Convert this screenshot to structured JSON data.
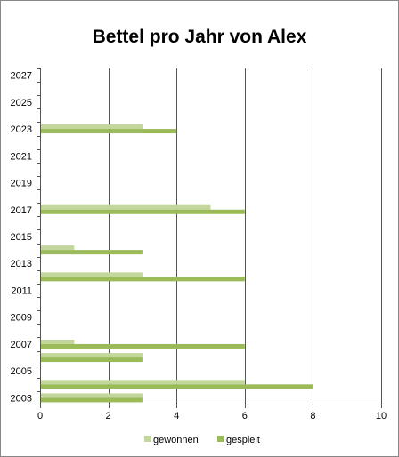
{
  "chart_data": {
    "type": "bar",
    "orientation": "horizontal",
    "title": "Bettel pro Jahr von Alex",
    "xlabel": "",
    "ylabel": "",
    "xlim": [
      0,
      10
    ],
    "x_ticks": [
      0,
      2,
      4,
      6,
      8,
      10
    ],
    "categories": [
      "2003",
      "2004",
      "2005",
      "2006",
      "2007",
      "2008",
      "2009",
      "2010",
      "2011",
      "2012",
      "2013",
      "2014",
      "2015",
      "2016",
      "2017",
      "2018",
      "2019",
      "2020",
      "2021",
      "2022",
      "2023",
      "2024",
      "2025",
      "2026",
      "2027"
    ],
    "y_tick_labels": [
      "2003",
      "2005",
      "2007",
      "2009",
      "2011",
      "2013",
      "2015",
      "2017",
      "2019",
      "2021",
      "2023",
      "2025",
      "2027"
    ],
    "series": [
      {
        "name": "gewonnen",
        "color": "#C3D69B",
        "values": [
          3,
          6,
          0,
          3,
          1,
          0,
          0,
          0,
          0,
          3,
          0,
          1,
          0,
          0,
          5,
          0,
          0,
          0,
          0,
          0,
          3,
          0,
          0,
          0,
          0
        ]
      },
      {
        "name": "gespielt",
        "color": "#9BBB59",
        "values": [
          3,
          8,
          0,
          3,
          6,
          0,
          0,
          0,
          0,
          6,
          0,
          3,
          0,
          0,
          6,
          0,
          0,
          0,
          0,
          0,
          4,
          0,
          0,
          0,
          0
        ]
      }
    ],
    "grid": "vertical",
    "legend_position": "bottom"
  }
}
